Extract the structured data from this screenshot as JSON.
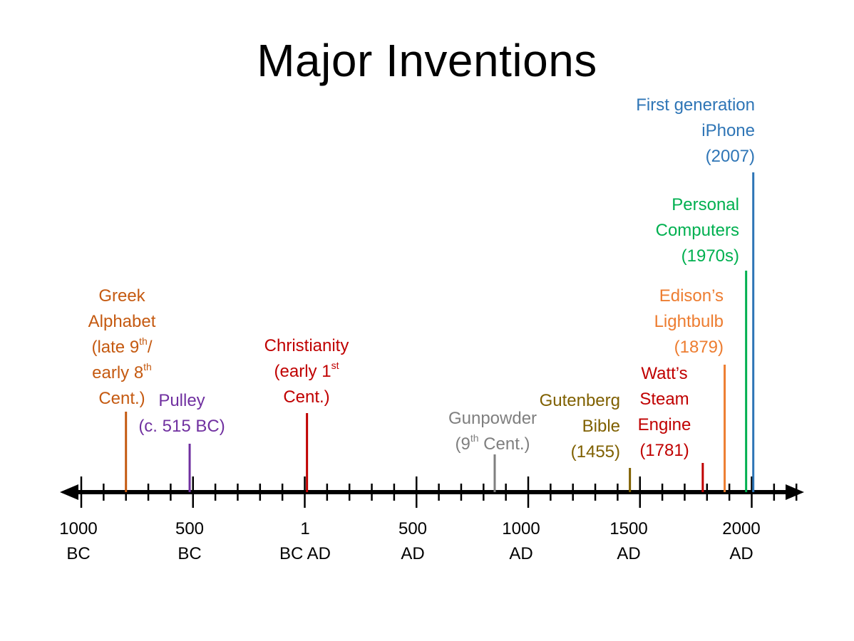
{
  "title": "Major Inventions",
  "axis": {
    "ticks": [
      {
        "line1": "1000",
        "line2": "BC"
      },
      {
        "line1": "500",
        "line2": "BC"
      },
      {
        "line1": "1",
        "line2": "BC AD"
      },
      {
        "line1": "500",
        "line2": "AD"
      },
      {
        "line1": "1000",
        "line2": "AD"
      },
      {
        "line1": "1500",
        "line2": "AD"
      },
      {
        "line1": "2000",
        "line2": "AD"
      }
    ]
  },
  "events": [
    {
      "year": -800,
      "color": "#C55A11",
      "lines": [
        "Greek",
        "Alphabet",
        "(late 9",
        "th",
        "/",
        "early 8",
        "th",
        "Cent.)"
      ]
    },
    {
      "year": -515,
      "color": "#7030A0",
      "lines": [
        "Pulley",
        "(c. 515 BC)"
      ]
    },
    {
      "year": 10,
      "color": "#C00000",
      "lines": [
        "Christianity",
        "(early 1",
        "st",
        "Cent.)"
      ]
    },
    {
      "year": 850,
      "color": "#7F7F7F",
      "lines": [
        "Gunpowder",
        "(9",
        "th",
        " Cent.)"
      ]
    },
    {
      "year": 1455,
      "color": "#7F6000",
      "lines": [
        "Gutenberg",
        "Bible",
        "(1455)"
      ]
    },
    {
      "year": 1781,
      "color": "#C00000",
      "lines": [
        "Watt’s",
        "Steam",
        "Engine",
        "(1781)"
      ]
    },
    {
      "year": 1879,
      "color": "#ED7D31",
      "lines": [
        "Edison’s",
        "Lightbulb",
        "(1879)"
      ]
    },
    {
      "year": 1975,
      "color": "#00B050",
      "lines": [
        "Personal",
        "Computers",
        "(1970s)"
      ]
    },
    {
      "year": 2007,
      "color": "#2E75B6",
      "lines": [
        "First generation",
        "iPhone",
        "(2007)"
      ]
    }
  ]
}
